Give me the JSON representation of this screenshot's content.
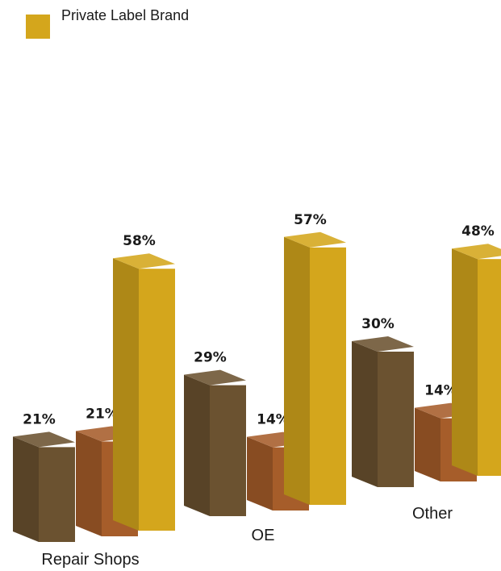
{
  "legend": {
    "label": "Private Label Brand"
  },
  "colors": {
    "series1": "#6b5230",
    "series2": "#a65d2a",
    "series3": "#d4a61c"
  },
  "chart_data": {
    "type": "bar",
    "style": "3d-clustered",
    "categories": [
      "Repair Shops",
      "OE",
      "Other"
    ],
    "series": [
      {
        "values": [
          21,
          29,
          30
        ],
        "labels": [
          "21%",
          "29%",
          "30%"
        ]
      },
      {
        "values": [
          21,
          14,
          14
        ],
        "labels": [
          "21%",
          "14%",
          "14%"
        ]
      },
      {
        "name": "Private Label Brand",
        "values": [
          58,
          57,
          48
        ],
        "labels": [
          "58%",
          "57%",
          "48%"
        ]
      }
    ],
    "unit": "%",
    "grid": false,
    "axes_visible": false,
    "legend_position": "top-left"
  }
}
